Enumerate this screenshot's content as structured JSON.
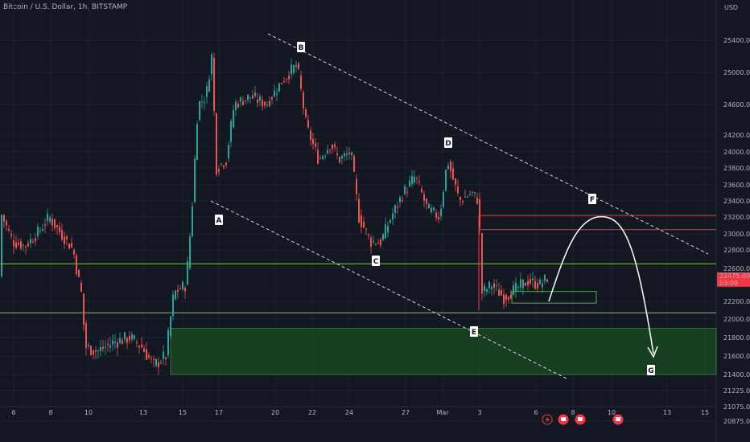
{
  "header": {
    "title": "Bitcoin / U.S. Dollar, 1h, BITSTAMP"
  },
  "chart_data": {
    "type": "candlestick",
    "currency_label": "USD",
    "x_ticks": [
      "6",
      "8",
      "10",
      "13",
      "15",
      "17",
      "20",
      "22",
      "24",
      "27",
      "Mar",
      "3",
      "6",
      "8",
      "10",
      "13",
      "15"
    ],
    "y_ticks": [
      "25400.00",
      "25000.00",
      "24600.00",
      "24200.00",
      "24000.00",
      "23800.00",
      "23600.00",
      "23400.00",
      "23200.00",
      "23000.00",
      "22800.00",
      "22600.00",
      "22200.00",
      "22000.00",
      "21800.00",
      "21600.00",
      "21400.00",
      "21225.00",
      "21075.00",
      "20875.00"
    ],
    "current_price": {
      "value": "22475.00",
      "countdown": "03:09",
      "color": "#f23645"
    },
    "ylim": [
      20800,
      25700
    ],
    "candle_colors": {
      "up": "#26a69a",
      "down": "#ef5350"
    },
    "series": [
      {
        "name": "BTCUSD",
        "x": [
          "6",
          "8",
          "10",
          "13",
          "15",
          "17",
          "20",
          "22",
          "24",
          "27",
          "Mar",
          "3",
          "6"
        ],
        "close": [
          22900,
          23200,
          21700,
          21500,
          22400,
          25100,
          24700,
          25300,
          22900,
          23200,
          23900,
          22000,
          22475
        ]
      }
    ],
    "annotations": {
      "points": [
        {
          "label": "A"
        },
        {
          "label": "B"
        },
        {
          "label": "C"
        },
        {
          "label": "D"
        },
        {
          "label": "E"
        },
        {
          "label": "F"
        },
        {
          "label": "G"
        }
      ],
      "horizontal_lines": [
        {
          "y": 22650,
          "color": "#8bc34a"
        },
        {
          "y": 22070,
          "color": "#8bc34a"
        },
        {
          "y": 23220,
          "color": "#f23645"
        },
        {
          "y": 23050,
          "color": "#f23645"
        }
      ],
      "zone": {
        "y_top": 21900,
        "y_bottom": 21400,
        "color": "#1b5e20"
      },
      "small_box": {
        "y_top": 22320,
        "y_bottom": 22180,
        "color": "#4caf50"
      }
    },
    "bottom_icons": [
      "lightning-icon",
      "calendar-icon",
      "calendar-icon",
      "calendar-icon"
    ]
  }
}
